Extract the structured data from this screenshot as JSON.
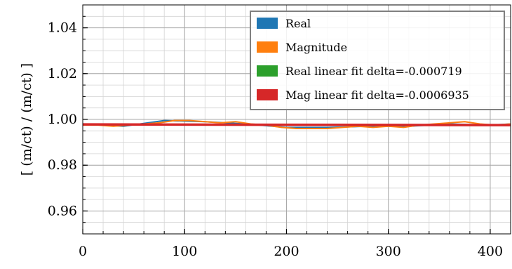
{
  "chart_data": {
    "type": "line",
    "title": "",
    "xlabel": "",
    "ylabel": "[ (m/ct) / (m/ct) ]",
    "xlim": [
      0,
      420
    ],
    "ylim": [
      0.95,
      1.05
    ],
    "x_ticks": [
      0,
      100,
      200,
      300,
      400
    ],
    "x_tick_labels": [
      "0",
      "100",
      "200",
      "300",
      "400"
    ],
    "y_ticks": [
      0.96,
      0.98,
      1.0,
      1.02,
      1.04
    ],
    "y_tick_labels": [
      "0.96",
      "0.98",
      "1.00",
      "1.02",
      "1.04"
    ],
    "grid": true,
    "legend_position": "top-right",
    "series": [
      {
        "name": "Real",
        "color": "#1f77b4",
        "x": [
          0,
          40,
          80,
          120,
          160,
          200,
          240,
          280,
          320,
          360,
          400,
          420
        ],
        "values": [
          0.998,
          0.997,
          0.9995,
          0.999,
          0.998,
          0.9965,
          0.9965,
          0.997,
          0.997,
          0.998,
          0.9975,
          0.998
        ]
      },
      {
        "name": "Magnitude",
        "color": "#ff7f0e",
        "x": [
          0,
          15,
          30,
          45,
          60,
          75,
          90,
          105,
          120,
          135,
          150,
          165,
          180,
          195,
          210,
          225,
          240,
          255,
          270,
          285,
          300,
          315,
          330,
          345,
          360,
          375,
          390,
          405,
          420
        ],
        "values": [
          0.9975,
          0.9975,
          0.997,
          0.9975,
          0.998,
          0.9985,
          0.9995,
          0.9995,
          0.999,
          0.9985,
          0.999,
          0.998,
          0.9975,
          0.9965,
          0.996,
          0.996,
          0.996,
          0.9965,
          0.997,
          0.9965,
          0.997,
          0.9965,
          0.9975,
          0.998,
          0.9985,
          0.999,
          0.998,
          0.9975,
          0.998
        ]
      },
      {
        "name": "Real linear fit delta=-0.000719",
        "color": "#2ca02c",
        "x": [
          0,
          420
        ],
        "values": [
          0.9978,
          0.9975
        ]
      },
      {
        "name": "Mag linear fit delta=-0.0006935",
        "color": "#d62728",
        "x": [
          0,
          420
        ],
        "values": [
          0.9978,
          0.9975
        ]
      }
    ]
  }
}
